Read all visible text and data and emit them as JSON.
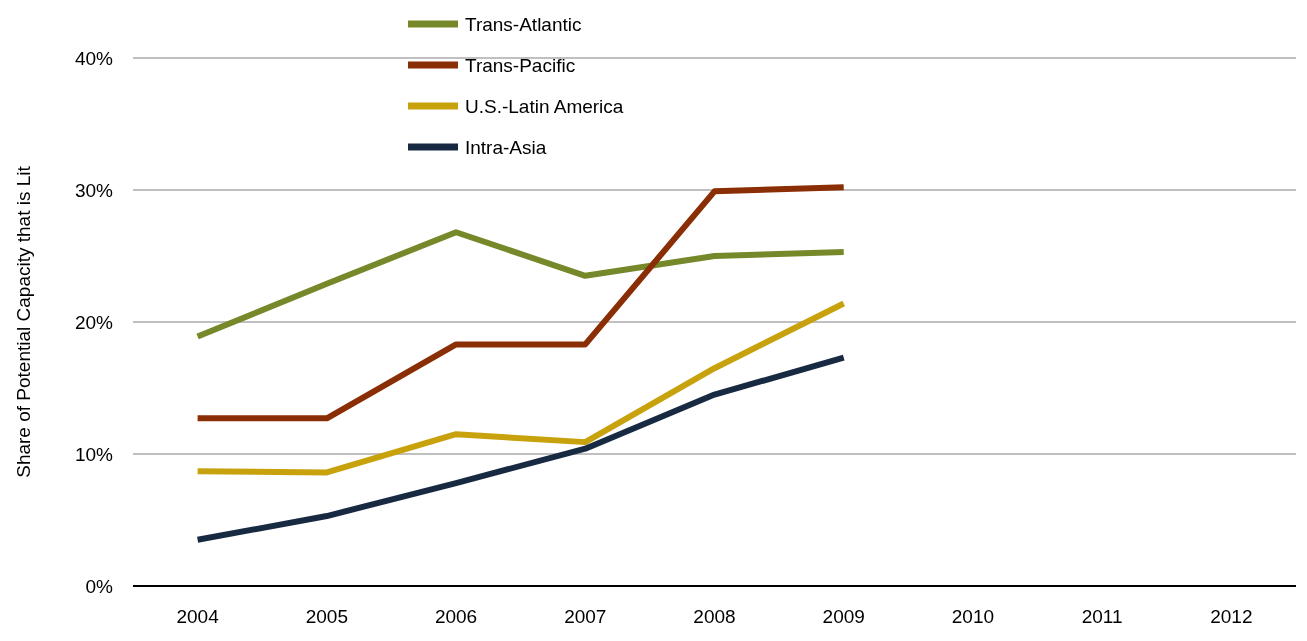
{
  "chart_data": {
    "type": "line",
    "ylabel": "Share of Potential Capacity that is Lit",
    "categories": [
      "2004",
      "2005",
      "2006",
      "2007",
      "2008",
      "2009",
      "2010",
      "2011",
      "2012"
    ],
    "series": [
      {
        "name": "Trans-Atlantic",
        "color": "#76892a",
        "values": [
          18.9,
          22.9,
          26.8,
          23.5,
          25.0,
          25.3,
          null,
          null,
          null
        ]
      },
      {
        "name": "Trans-Pacific",
        "color": "#8a2e06",
        "values": [
          12.7,
          12.7,
          18.3,
          18.3,
          29.9,
          30.2,
          null,
          null,
          null
        ]
      },
      {
        "name": "U.S.-Latin America",
        "color": "#c8a20c",
        "values": [
          8.7,
          8.6,
          11.5,
          10.9,
          16.5,
          21.4,
          null,
          null,
          null
        ]
      },
      {
        "name": "Intra-Asia",
        "color": "#172a42",
        "values": [
          3.5,
          5.3,
          7.8,
          10.4,
          14.5,
          17.3,
          null,
          null,
          null
        ]
      }
    ],
    "ylim": [
      0,
      40
    ],
    "yticks": [
      {
        "value": 0,
        "label": "0%"
      },
      {
        "value": 10,
        "label": "10%"
      },
      {
        "value": 20,
        "label": "20%"
      },
      {
        "value": 30,
        "label": "30%"
      },
      {
        "value": 40,
        "label": "40%"
      }
    ],
    "grid": "y",
    "legend": "top",
    "marker": "none",
    "line_style": "solid"
  }
}
